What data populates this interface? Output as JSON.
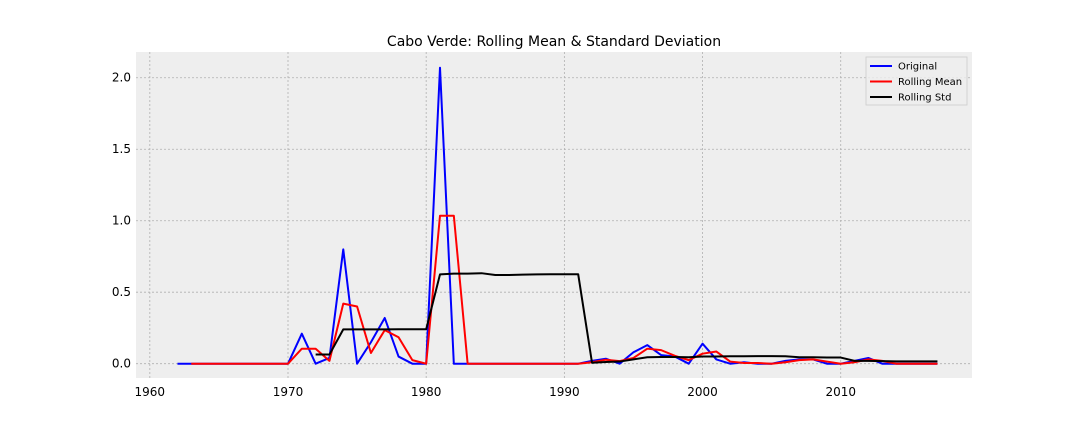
{
  "chart_data": {
    "type": "line",
    "title": "Cabo Verde: Rolling Mean & Standard Deviation",
    "xlabel": "",
    "ylabel": "",
    "xlim": [
      1959,
      2019.5
    ],
    "ylim": [
      -0.1,
      2.18
    ],
    "xticks": [
      1960,
      1970,
      1980,
      1990,
      2000,
      2010
    ],
    "yticks": [
      0.0,
      0.5,
      1.0,
      1.5,
      2.0
    ],
    "ytick_labels": [
      "0.0",
      "0.5",
      "1.0",
      "1.5",
      "2.0"
    ],
    "grid": true,
    "legend_position": "top-right",
    "series": [
      {
        "name": "Original",
        "color": "#0000ff",
        "points": [
          [
            1962,
            0
          ],
          [
            1963,
            0
          ],
          [
            1964,
            0
          ],
          [
            1965,
            0
          ],
          [
            1966,
            0
          ],
          [
            1967,
            0
          ],
          [
            1968,
            0
          ],
          [
            1969,
            0
          ],
          [
            1970,
            0
          ],
          [
            1971,
            0.21
          ],
          [
            1972,
            0
          ],
          [
            1973,
            0.04
          ],
          [
            1974,
            0.8
          ],
          [
            1975,
            0
          ],
          [
            1976,
            0.15
          ],
          [
            1977,
            0.32
          ],
          [
            1978,
            0.05
          ],
          [
            1979,
            0
          ],
          [
            1980,
            0
          ],
          [
            1981,
            2.07
          ],
          [
            1982,
            0
          ],
          [
            1983,
            0
          ],
          [
            1984,
            0
          ],
          [
            1985,
            0
          ],
          [
            1986,
            0
          ],
          [
            1987,
            0
          ],
          [
            1988,
            0
          ],
          [
            1989,
            0
          ],
          [
            1990,
            0
          ],
          [
            1991,
            0
          ],
          [
            1992,
            0.02
          ],
          [
            1993,
            0.035
          ],
          [
            1994,
            0
          ],
          [
            1995,
            0.08
          ],
          [
            1996,
            0.13
          ],
          [
            1997,
            0.06
          ],
          [
            1998,
            0.05
          ],
          [
            1999,
            0
          ],
          [
            2000,
            0.14
          ],
          [
            2001,
            0.03
          ],
          [
            2002,
            0
          ],
          [
            2003,
            0.01
          ],
          [
            2004,
            0
          ],
          [
            2005,
            0
          ],
          [
            2006,
            0.02
          ],
          [
            2007,
            0.03
          ],
          [
            2008,
            0.03
          ],
          [
            2009,
            0
          ],
          [
            2010,
            0
          ],
          [
            2011,
            0.02
          ],
          [
            2012,
            0.04
          ],
          [
            2013,
            0
          ],
          [
            2014,
            0
          ],
          [
            2015,
            0
          ],
          [
            2016,
            0
          ],
          [
            2017,
            0
          ]
        ]
      },
      {
        "name": "Rolling Mean",
        "color": "#ff0000",
        "points": [
          [
            1963,
            0
          ],
          [
            1964,
            0
          ],
          [
            1965,
            0
          ],
          [
            1966,
            0
          ],
          [
            1967,
            0
          ],
          [
            1968,
            0
          ],
          [
            1969,
            0
          ],
          [
            1970,
            0
          ],
          [
            1971,
            0.105
          ],
          [
            1972,
            0.105
          ],
          [
            1973,
            0.02
          ],
          [
            1974,
            0.42
          ],
          [
            1975,
            0.4
          ],
          [
            1976,
            0.075
          ],
          [
            1977,
            0.235
          ],
          [
            1978,
            0.185
          ],
          [
            1979,
            0.025
          ],
          [
            1980,
            0
          ],
          [
            1981,
            1.035
          ],
          [
            1982,
            1.035
          ],
          [
            1983,
            0
          ],
          [
            1984,
            0
          ],
          [
            1985,
            0
          ],
          [
            1986,
            0
          ],
          [
            1987,
            0
          ],
          [
            1988,
            0
          ],
          [
            1989,
            0
          ],
          [
            1990,
            0
          ],
          [
            1991,
            0
          ],
          [
            1992,
            0.01
          ],
          [
            1993,
            0.028
          ],
          [
            1994,
            0.018
          ],
          [
            1995,
            0.04
          ],
          [
            1996,
            0.105
          ],
          [
            1997,
            0.095
          ],
          [
            1998,
            0.055
          ],
          [
            1999,
            0.025
          ],
          [
            2000,
            0.07
          ],
          [
            2001,
            0.085
          ],
          [
            2002,
            0.015
          ],
          [
            2003,
            0.005
          ],
          [
            2004,
            0.005
          ],
          [
            2005,
            0
          ],
          [
            2006,
            0.01
          ],
          [
            2007,
            0.025
          ],
          [
            2008,
            0.03
          ],
          [
            2009,
            0.015
          ],
          [
            2010,
            0
          ],
          [
            2011,
            0.01
          ],
          [
            2012,
            0.03
          ],
          [
            2013,
            0.02
          ],
          [
            2014,
            0
          ],
          [
            2015,
            0
          ],
          [
            2016,
            0
          ],
          [
            2017,
            0
          ]
        ]
      },
      {
        "name": "Rolling Std",
        "color": "#000000",
        "points": [
          [
            1972,
            0.064
          ],
          [
            1973,
            0.064
          ],
          [
            1974,
            0.24
          ],
          [
            1975,
            0.24
          ],
          [
            1976,
            0.24
          ],
          [
            1977,
            0.24
          ],
          [
            1978,
            0.241
          ],
          [
            1979,
            0.241
          ],
          [
            1980,
            0.241
          ],
          [
            1981,
            0.625
          ],
          [
            1982,
            0.63
          ],
          [
            1983,
            0.63
          ],
          [
            1984,
            0.633
          ],
          [
            1985,
            0.62
          ],
          [
            1986,
            0.62
          ],
          [
            1987,
            0.623
          ],
          [
            1988,
            0.625
          ],
          [
            1989,
            0.626
          ],
          [
            1990,
            0.626
          ],
          [
            1991,
            0.626
          ],
          [
            1992,
            0.007
          ],
          [
            1993,
            0.012
          ],
          [
            1994,
            0.015
          ],
          [
            1995,
            0.03
          ],
          [
            1996,
            0.045
          ],
          [
            1997,
            0.047
          ],
          [
            1998,
            0.047
          ],
          [
            1999,
            0.045
          ],
          [
            2000,
            0.05
          ],
          [
            2001,
            0.05
          ],
          [
            2002,
            0.052
          ],
          [
            2003,
            0.052
          ],
          [
            2004,
            0.053
          ],
          [
            2005,
            0.053
          ],
          [
            2006,
            0.052
          ],
          [
            2007,
            0.045
          ],
          [
            2008,
            0.045
          ],
          [
            2009,
            0.043
          ],
          [
            2010,
            0.043
          ],
          [
            2011,
            0.02
          ],
          [
            2012,
            0.02
          ],
          [
            2013,
            0.018
          ],
          [
            2014,
            0.016
          ],
          [
            2015,
            0.016
          ],
          [
            2016,
            0.016
          ],
          [
            2017,
            0.016
          ]
        ]
      }
    ]
  }
}
